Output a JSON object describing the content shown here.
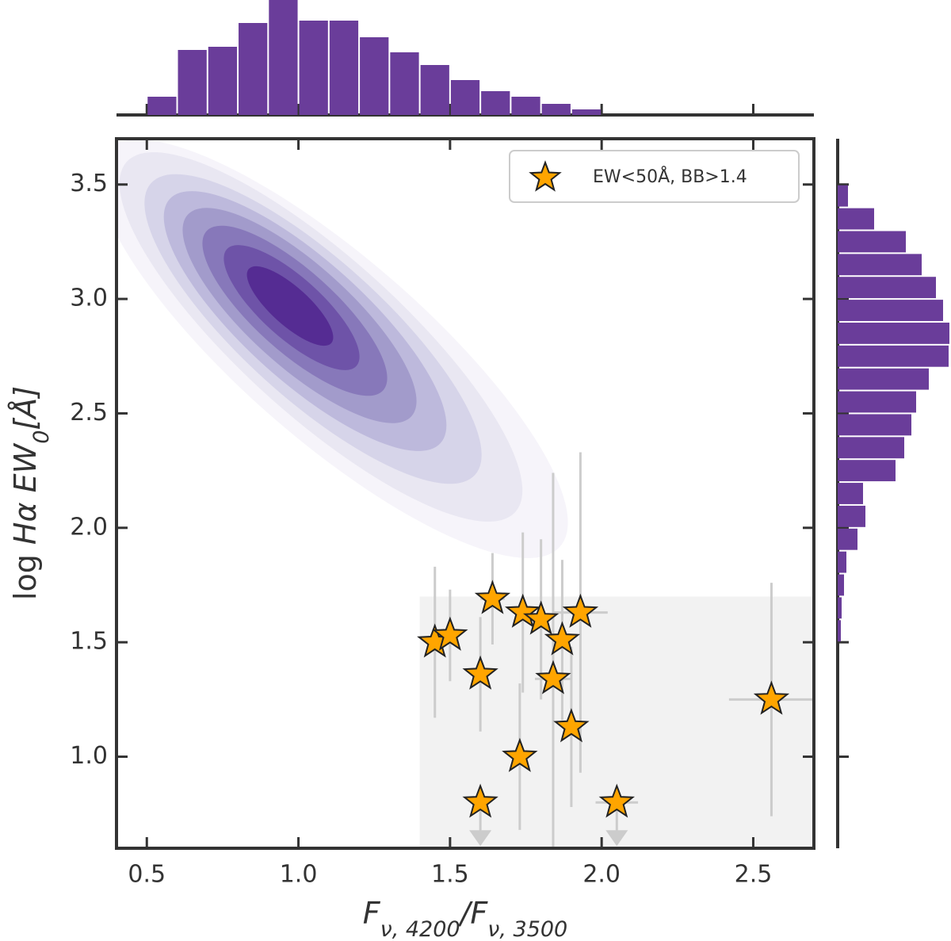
{
  "chart_data": [
    {
      "type": "scatter",
      "xlabel": [
        {
          "text": "F",
          "italic": true
        },
        {
          "text": "ν, 4200",
          "italic": true,
          "sub": true
        },
        {
          "text": "/F",
          "italic": true
        },
        {
          "text": "ν, 3500",
          "italic": true,
          "sub": true
        }
      ],
      "ylabel": [
        {
          "text": "log "
        },
        {
          "text": "Hα EW",
          "italic": true
        },
        {
          "text": "0",
          "italic": true,
          "sub": true
        },
        {
          "text": "[Å]",
          "italic": true
        }
      ],
      "xlim": [
        0.4,
        2.7
      ],
      "xticks": [
        0.5,
        {
          "value": 1,
          "label": "1.0"
        },
        1.5,
        {
          "value": 2,
          "label": "2.0"
        },
        2.5
      ],
      "ylim": [
        0.6,
        3.7
      ],
      "yticks": [
        {
          "value": 1,
          "label": "1.0"
        },
        1.5,
        {
          "value": 2,
          "label": "2.0"
        },
        2.5,
        {
          "value": 3,
          "label": "3.0"
        },
        3.5
      ],
      "shaded_region": {
        "xmin": 1.4,
        "ymax": 1.7,
        "color": "#f2f2f2"
      },
      "legend": "upper right",
      "series": [
        {
          "name": "EW<50Å, BB>1.4",
          "color": "#ffa500",
          "errcolor": "#cccccc",
          "x": [
            1.45,
            1.5,
            1.64,
            1.6,
            1.6,
            1.74,
            1.8,
            1.93,
            1.87,
            1.84,
            1.9,
            1.73,
            2.05,
            2.56
          ],
          "y": [
            1.5,
            1.53,
            1.69,
            1.36,
            0.8,
            1.63,
            1.6,
            1.63,
            1.51,
            1.34,
            1.13,
            1.0,
            0.8,
            1.25
          ],
          "xerr": [
            0.03,
            0.02,
            0.04,
            0.03,
            0.03,
            0.03,
            0.03,
            0.09,
            0.03,
            0.06,
            0.03,
            0.03,
            0.07,
            0.14
          ],
          "yerr": [
            0.33,
            0.2,
            0.2,
            0.25,
            0,
            0.35,
            0.35,
            0.7,
            0.35,
            0.9,
            0.35,
            0.32,
            0,
            0.51
          ],
          "upper_limit": [
            false,
            false,
            false,
            false,
            true,
            false,
            false,
            false,
            false,
            false,
            false,
            false,
            true,
            false
          ]
        }
      ]
    },
    {
      "type": "histogram",
      "orientation": "vertical",
      "color": "#6a3d9a",
      "bins": [
        0.5,
        0.6,
        0.7,
        0.8,
        0.9,
        1.0,
        1.1,
        1.2,
        1.3,
        1.4,
        1.5,
        1.6,
        1.7,
        1.8,
        1.9,
        2.0
      ],
      "counts": [
        23,
        82,
        86,
        116,
        145,
        119,
        119,
        98,
        79,
        63,
        44,
        30,
        23,
        14,
        7
      ]
    },
    {
      "type": "histogram",
      "orientation": "horizontal",
      "color": "#6a3d9a",
      "bins": [
        1.5,
        1.6,
        1.7,
        1.8,
        1.9,
        2.0,
        2.1,
        2.2,
        2.3,
        2.4,
        2.5,
        2.6,
        2.7,
        2.8,
        2.9,
        3.0,
        3.1,
        3.2,
        3.3,
        3.4,
        3.5
      ],
      "counts": [
        4,
        5,
        8,
        11,
        25,
        35,
        32,
        73,
        84,
        93,
        99,
        115,
        140,
        141,
        133,
        124,
        106,
        86,
        46,
        13
      ]
    }
  ]
}
